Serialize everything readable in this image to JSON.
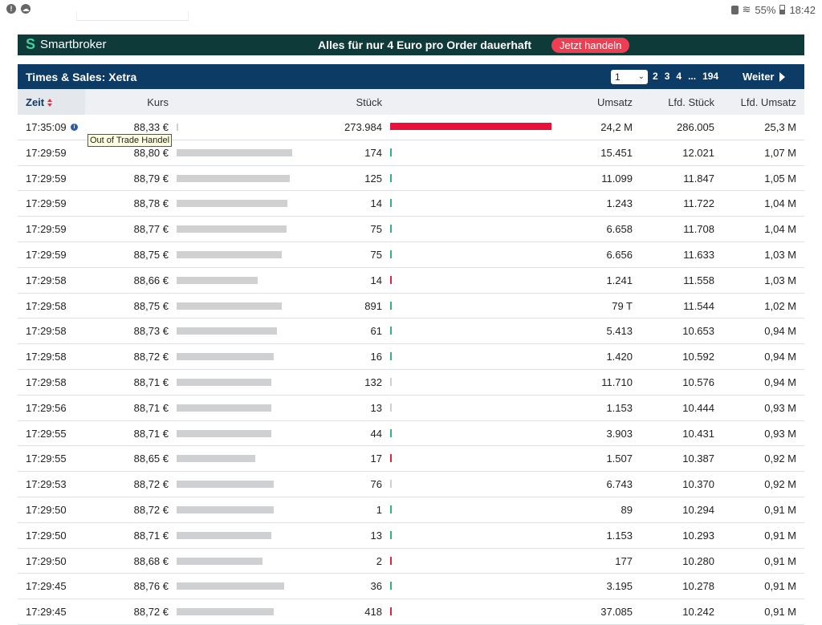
{
  "statusbar": {
    "battery": "55%",
    "time": "18:42"
  },
  "banner": {
    "brand": "Smartbroker",
    "text": "Alles für nur 4 Euro pro Order dauerhaft",
    "button": "Jetzt handeln"
  },
  "panel": {
    "title": "Times & Sales: Xetra",
    "page_selected": "1",
    "pages": [
      "2",
      "3",
      "4",
      "...",
      "194"
    ],
    "next_label": "Weiter"
  },
  "columns": {
    "zeit": "Zeit",
    "kurs": "Kurs",
    "stueck": "Stück",
    "umsatz": "Umsatz",
    "lfd_stueck": "Lfd. Stück",
    "lfd_umsatz": "Lfd. Umsatz"
  },
  "tooltip": "Out of Trade Handel",
  "colors": {
    "up": "#2fb47a",
    "down": "#e8213f",
    "neutral": "#cfd0d2",
    "big_trade": "#e8113a"
  },
  "rows": [
    {
      "zeit": "17:35:09",
      "kurs": "88,33 €",
      "kurs_level": 0.01,
      "stueck": "273.984",
      "stueck_level": 1.0,
      "dir": "down",
      "umsatz": "24,2 M",
      "lfd_stueck": "286.005",
      "lfd_umsatz": "25,3 M",
      "info": true
    },
    {
      "zeit": "17:29:59",
      "kurs": "88,80 €",
      "kurs_level": 0.98,
      "stueck": "174",
      "dir": "up",
      "umsatz": "15.451",
      "lfd_stueck": "12.021",
      "lfd_umsatz": "1,07 M"
    },
    {
      "zeit": "17:29:59",
      "kurs": "88,79 €",
      "kurs_level": 0.96,
      "stueck": "125",
      "dir": "up",
      "umsatz": "11.099",
      "lfd_stueck": "11.847",
      "lfd_umsatz": "1,05 M"
    },
    {
      "zeit": "17:29:59",
      "kurs": "88,78 €",
      "kurs_level": 0.94,
      "stueck": "14",
      "dir": "up",
      "umsatz": "1.243",
      "lfd_stueck": "11.722",
      "lfd_umsatz": "1,04 M"
    },
    {
      "zeit": "17:29:59",
      "kurs": "88,77 €",
      "kurs_level": 0.93,
      "stueck": "75",
      "dir": "up",
      "umsatz": "6.658",
      "lfd_stueck": "11.708",
      "lfd_umsatz": "1,04 M"
    },
    {
      "zeit": "17:29:59",
      "kurs": "88,75 €",
      "kurs_level": 0.89,
      "stueck": "75",
      "dir": "up",
      "umsatz": "6.656",
      "lfd_stueck": "11.633",
      "lfd_umsatz": "1,03 M"
    },
    {
      "zeit": "17:29:58",
      "kurs": "88,66 €",
      "kurs_level": 0.69,
      "stueck": "14",
      "dir": "down",
      "umsatz": "1.241",
      "lfd_stueck": "11.558",
      "lfd_umsatz": "1,03 M"
    },
    {
      "zeit": "17:29:58",
      "kurs": "88,75 €",
      "kurs_level": 0.89,
      "stueck": "891",
      "dir": "up",
      "umsatz": "79 T",
      "lfd_stueck": "11.544",
      "lfd_umsatz": "1,02 M"
    },
    {
      "zeit": "17:29:58",
      "kurs": "88,73 €",
      "kurs_level": 0.85,
      "stueck": "61",
      "dir": "up",
      "umsatz": "5.413",
      "lfd_stueck": "10.653",
      "lfd_umsatz": "0,94 M"
    },
    {
      "zeit": "17:29:58",
      "kurs": "88,72 €",
      "kurs_level": 0.82,
      "stueck": "16",
      "dir": "up",
      "umsatz": "1.420",
      "lfd_stueck": "10.592",
      "lfd_umsatz": "0,94 M"
    },
    {
      "zeit": "17:29:58",
      "kurs": "88,71 €",
      "kurs_level": 0.8,
      "stueck": "132",
      "dir": "neutral",
      "umsatz": "11.710",
      "lfd_stueck": "10.576",
      "lfd_umsatz": "0,94 M"
    },
    {
      "zeit": "17:29:56",
      "kurs": "88,71 €",
      "kurs_level": 0.8,
      "stueck": "13",
      "dir": "neutral",
      "umsatz": "1.153",
      "lfd_stueck": "10.444",
      "lfd_umsatz": "0,93 M"
    },
    {
      "zeit": "17:29:55",
      "kurs": "88,71 €",
      "kurs_level": 0.8,
      "stueck": "44",
      "dir": "up",
      "umsatz": "3.903",
      "lfd_stueck": "10.431",
      "lfd_umsatz": "0,93 M"
    },
    {
      "zeit": "17:29:55",
      "kurs": "88,65 €",
      "kurs_level": 0.67,
      "stueck": "17",
      "dir": "down",
      "umsatz": "1.507",
      "lfd_stueck": "10.387",
      "lfd_umsatz": "0,92 M"
    },
    {
      "zeit": "17:29:53",
      "kurs": "88,72 €",
      "kurs_level": 0.82,
      "stueck": "76",
      "dir": "neutral",
      "umsatz": "6.743",
      "lfd_stueck": "10.370",
      "lfd_umsatz": "0,92 M"
    },
    {
      "zeit": "17:29:50",
      "kurs": "88,72 €",
      "kurs_level": 0.82,
      "stueck": "1",
      "dir": "up",
      "umsatz": "89",
      "lfd_stueck": "10.294",
      "lfd_umsatz": "0,91 M"
    },
    {
      "zeit": "17:29:50",
      "kurs": "88,71 €",
      "kurs_level": 0.8,
      "stueck": "13",
      "dir": "up",
      "umsatz": "1.153",
      "lfd_stueck": "10.293",
      "lfd_umsatz": "0,91 M"
    },
    {
      "zeit": "17:29:50",
      "kurs": "88,68 €",
      "kurs_level": 0.73,
      "stueck": "2",
      "dir": "down",
      "umsatz": "177",
      "lfd_stueck": "10.280",
      "lfd_umsatz": "0,91 M"
    },
    {
      "zeit": "17:29:45",
      "kurs": "88,76 €",
      "kurs_level": 0.91,
      "stueck": "36",
      "dir": "up",
      "umsatz": "3.195",
      "lfd_stueck": "10.278",
      "lfd_umsatz": "0,91 M"
    },
    {
      "zeit": "17:29:45",
      "kurs": "88,72 €",
      "kurs_level": 0.82,
      "stueck": "418",
      "dir": "down",
      "umsatz": "37.085",
      "lfd_stueck": "10.242",
      "lfd_umsatz": "0,91 M"
    }
  ]
}
